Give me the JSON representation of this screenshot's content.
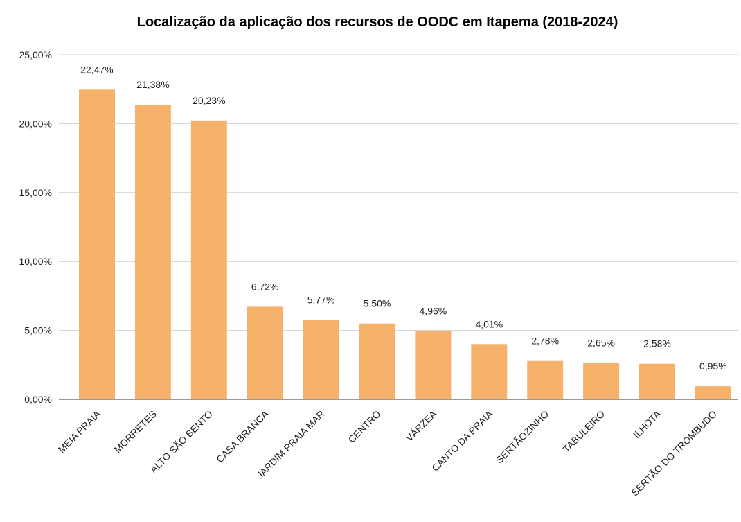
{
  "chart_data": {
    "type": "bar",
    "title": "Localização da aplicação dos recursos de OODC em Itapema (2018-2024)",
    "categories": [
      "MEIA PRAIA",
      "MORRETES",
      "ALTO SÃO BENTO",
      "CASA BRANCA",
      "JARDIM PRAIA MAR",
      "CENTRO",
      "VÁRZEA",
      "CANTO DA PRAIA",
      "SERTÃOZINHO",
      "TABULEIRO",
      "ILHOTA",
      "SERTÃO DO TROMBUDO"
    ],
    "values": [
      22.47,
      21.38,
      20.23,
      6.72,
      5.77,
      5.5,
      4.96,
      4.01,
      2.78,
      2.65,
      2.58,
      0.95
    ],
    "value_labels": [
      "22,47%",
      "21,38%",
      "20,23%",
      "6,72%",
      "5,77%",
      "5,50%",
      "4,96%",
      "4,01%",
      "2,78%",
      "2,65%",
      "2,58%",
      "0,95%"
    ],
    "color": "#f6b26b",
    "ylim": [
      0,
      25
    ],
    "yticks": [
      {
        "value": 0,
        "label": "0,00%"
      },
      {
        "value": 5,
        "label": "5,00%"
      },
      {
        "value": 10,
        "label": "10,00%"
      },
      {
        "value": 15,
        "label": "15,00%"
      },
      {
        "value": 20,
        "label": "20,00%"
      },
      {
        "value": 25,
        "label": "25,00%"
      }
    ],
    "grid": true
  }
}
